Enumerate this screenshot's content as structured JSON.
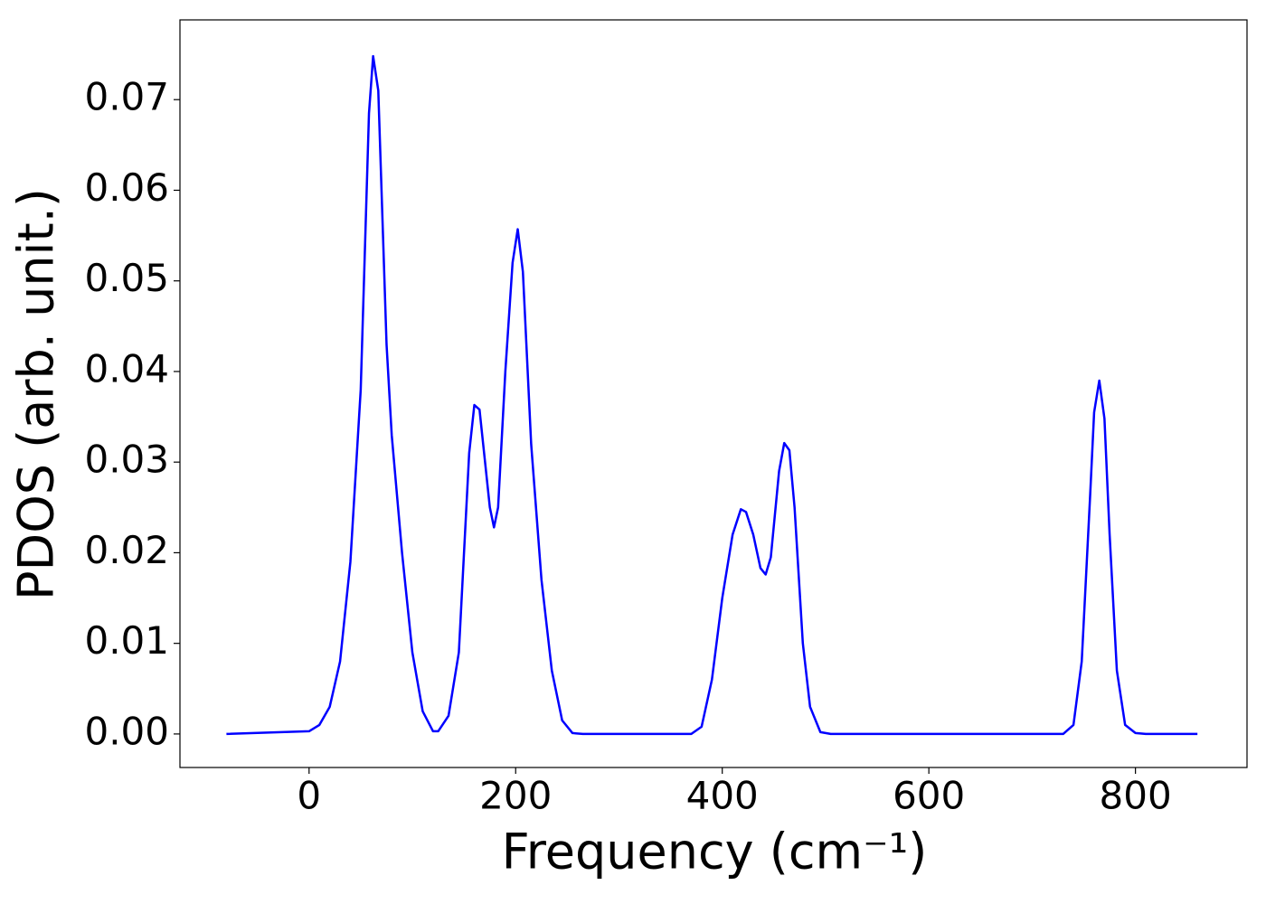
{
  "chart_data": {
    "type": "line",
    "x_label": "Frequency (cm⁻¹)",
    "y_label": "PDOS (arb. unit.)",
    "x": [
      -80,
      0,
      10,
      20,
      30,
      40,
      50,
      58,
      62,
      67,
      75,
      80,
      90,
      100,
      110,
      120,
      125,
      135,
      145,
      155,
      160,
      165,
      175,
      179,
      183,
      190,
      197,
      202,
      207,
      215,
      225,
      235,
      245,
      255,
      265,
      370,
      380,
      390,
      400,
      410,
      418,
      423,
      430,
      437,
      442,
      447,
      455,
      460,
      465,
      470,
      478,
      485,
      495,
      505,
      730,
      740,
      748,
      756,
      760,
      765,
      770,
      775,
      782,
      790,
      800,
      810,
      860
    ],
    "series": [
      {
        "name": "PDOS",
        "color": "#0000ff",
        "values": [
          0,
          0.0003,
          0.001,
          0.003,
          0.008,
          0.019,
          0.038,
          0.0685,
          0.0748,
          0.071,
          0.043,
          0.033,
          0.02,
          0.009,
          0.0025,
          0.0003,
          0.0003,
          0.002,
          0.009,
          0.031,
          0.0363,
          0.0358,
          0.025,
          0.0228,
          0.025,
          0.04,
          0.052,
          0.0557,
          0.051,
          0.032,
          0.017,
          0.007,
          0.0015,
          0.0001,
          0,
          0,
          0.0008,
          0.006,
          0.015,
          0.022,
          0.0248,
          0.0245,
          0.022,
          0.0183,
          0.0176,
          0.0195,
          0.029,
          0.0321,
          0.0313,
          0.025,
          0.01,
          0.003,
          0.0002,
          0,
          0,
          0.001,
          0.008,
          0.026,
          0.0355,
          0.039,
          0.0348,
          0.022,
          0.007,
          0.001,
          0.0001,
          0,
          0
        ]
      }
    ],
    "xlim": [
      -125,
      908
    ],
    "ylim": [
      -0.0037,
      0.0788
    ],
    "xticks": [
      0,
      200,
      400,
      600,
      800
    ],
    "yticks": [
      {
        "value": 0,
        "label": "0.00"
      },
      0.01,
      0.02,
      0.03,
      0.04,
      0.05,
      0.06,
      0.07
    ]
  }
}
